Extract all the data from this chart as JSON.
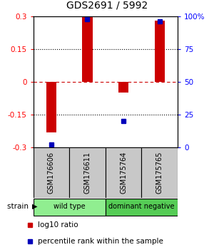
{
  "title": "GDS2691 / 5992",
  "samples": [
    "GSM176606",
    "GSM176611",
    "GSM175764",
    "GSM175765"
  ],
  "log10_ratio": [
    -0.23,
    0.3,
    -0.05,
    0.28
  ],
  "percentile_rank": [
    2,
    98,
    20,
    96
  ],
  "groups": [
    {
      "label": "wild type",
      "samples": [
        0,
        1
      ],
      "color": "#90EE90"
    },
    {
      "label": "dominant negative",
      "samples": [
        2,
        3
      ],
      "color": "#55CC55"
    }
  ],
  "ylim_left": [
    -0.3,
    0.3
  ],
  "ylim_right": [
    0,
    100
  ],
  "yticks_left": [
    -0.3,
    -0.15,
    0,
    0.15,
    0.3
  ],
  "yticks_right": [
    0,
    25,
    50,
    75,
    100
  ],
  "bar_color": "#CC0000",
  "dot_color": "#0000BB",
  "zero_line_color": "#CC0000",
  "grid_color": "#000000",
  "sample_box_color": "#C8C8C8",
  "background_color": "#ffffff",
  "title_fontsize": 10,
  "tick_fontsize": 7.5,
  "sample_fontsize": 7,
  "legend_fontsize": 7.5
}
